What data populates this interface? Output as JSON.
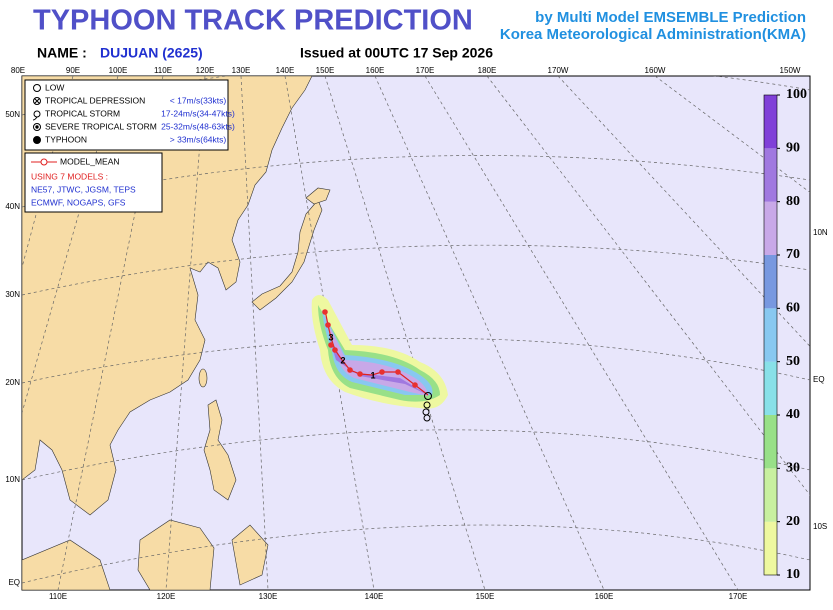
{
  "header": {
    "title": "TYPHOON  TRACK  PREDICTION",
    "source_line1": "by Multi Model EMSEMBLE Prediction",
    "source_line2": "Korea Meteorological Administration(KMA)",
    "name_label": "NAME :",
    "name_value": "DUJUAN (2625)",
    "issued": "Issued at  00UTC 17 Sep 2026"
  },
  "map": {
    "lon_labels_top": [
      "80E",
      "90E",
      "100E",
      "110E",
      "120E",
      "130E",
      "140E",
      "150E",
      "160E",
      "170E",
      "180E",
      "170W",
      "160W",
      "150W"
    ],
    "lat_labels_left": [
      "50N",
      "40N",
      "30N",
      "20N",
      "10N",
      "EQ"
    ],
    "lon_labels_bottom": [
      "110E",
      "120E",
      "130E",
      "140E",
      "150E",
      "160E",
      "170E"
    ],
    "lat_labels_right": [
      "10N",
      "EQ",
      "10S"
    ]
  },
  "legend": {
    "items": [
      {
        "name": "LOW"
      },
      {
        "name": "TROPICAL DEPRESSION",
        "range": "< 17m/s(33kts)"
      },
      {
        "name": "TROPICAL STORM",
        "range": "17-24m/s(34-47kts)"
      },
      {
        "name": "SEVERE TROPICAL STORM",
        "range": "25-32m/s(48-63kts)"
      },
      {
        "name": "TYPHOON",
        "range": "> 33m/s(64kts)"
      }
    ]
  },
  "model_box": {
    "mean_label": "MODEL_MEAN",
    "models_title": "USING 7 MODELS :",
    "models_line1": "NE57, JTWC, JGSM, TEPS",
    "models_line2": "ECMWF, NOGAPS, GFS"
  },
  "track": {
    "day_labels": [
      "1",
      "2",
      "3"
    ]
  },
  "colorbar": {
    "range": [
      10,
      100
    ],
    "ticks": [
      10,
      20,
      30,
      40,
      50,
      60,
      70,
      80,
      90,
      100
    ],
    "colors": [
      "#eef8a0",
      "#c8f0a0",
      "#98e088",
      "#88e0e8",
      "#88c8f0",
      "#7898e0",
      "#c8a8e8",
      "#a078e0",
      "#8040d8"
    ]
  }
}
